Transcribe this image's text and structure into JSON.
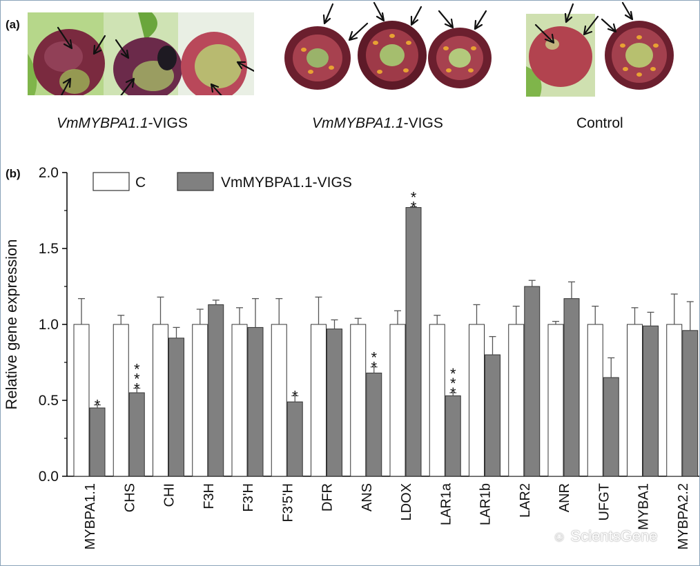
{
  "panel_a": {
    "label": "(a)",
    "captions": [
      {
        "gene": "VmMYBPA1.1",
        "suffix": "-VIGS"
      },
      {
        "gene": "VmMYBPA1.1",
        "suffix": "-VIGS"
      },
      {
        "text": "Control"
      }
    ]
  },
  "panel_b": {
    "label": "(b)"
  },
  "chart_data": {
    "type": "bar",
    "ylabel": "Relative gene expression",
    "xlabel": "",
    "ylim": [
      0,
      2.0
    ],
    "yticks": [
      "0.0",
      "0.5",
      "1.0",
      "1.5",
      "2.0"
    ],
    "categories": [
      "MYBPA1.1",
      "CHS",
      "CHI",
      "F3H",
      "F3'H",
      "F3'5'H",
      "DFR",
      "ANS",
      "LDOX",
      "LAR1a",
      "LAR1b",
      "LAR2",
      "ANR",
      "UFGT",
      "MYBA1",
      "MYBPA2.2"
    ],
    "series": [
      {
        "name": "C",
        "color": "#ffffff",
        "values": [
          1.0,
          1.0,
          1.0,
          1.0,
          1.0,
          1.0,
          1.0,
          1.0,
          1.0,
          1.0,
          1.0,
          1.0,
          1.0,
          1.0,
          1.0,
          1.0
        ],
        "errors": [
          0.17,
          0.06,
          0.18,
          0.1,
          0.11,
          0.17,
          0.18,
          0.04,
          0.09,
          0.06,
          0.13,
          0.12,
          0.02,
          0.12,
          0.11,
          0.2
        ]
      },
      {
        "name": "VmMYBPA1.1-VIGS",
        "color": "#808080",
        "values": [
          0.45,
          0.55,
          0.91,
          1.13,
          0.98,
          0.49,
          0.97,
          0.68,
          1.77,
          0.53,
          0.8,
          1.25,
          1.17,
          0.65,
          0.99,
          0.96
        ],
        "errors": [
          0.02,
          0.03,
          0.07,
          0.03,
          0.19,
          0.04,
          0.06,
          0.04,
          0.005,
          0.02,
          0.12,
          0.04,
          0.11,
          0.13,
          0.09,
          0.19
        ]
      }
    ],
    "significance": [
      "*",
      "***",
      "",
      "",
      "",
      "*",
      "",
      "**",
      "**",
      "***",
      "",
      "",
      "",
      "",
      "",
      ""
    ],
    "legend": [
      "C",
      "VmMYBPA1.1-VIGS"
    ],
    "legend_position": "top-left"
  },
  "watermark": "ScientsGene",
  "colors": {
    "fruit_dark": "#6b1f2e",
    "fruit_red": "#a33346",
    "leaf": "#8fbf4a",
    "seed": "#e8a233",
    "bar_gray": "#808080"
  }
}
